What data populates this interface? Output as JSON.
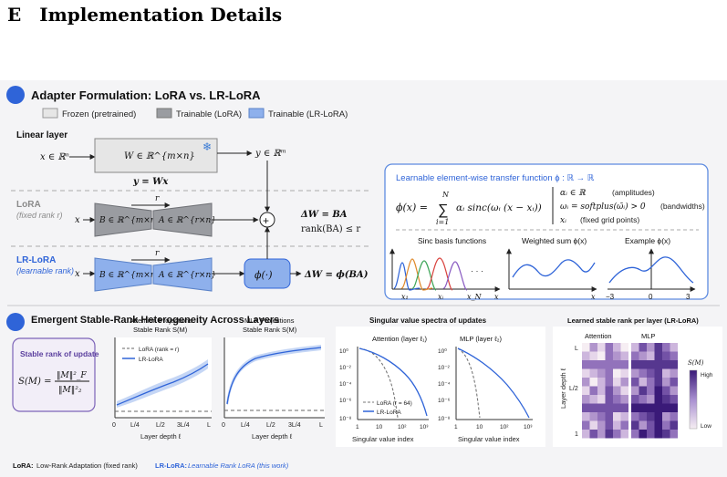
{
  "page": {
    "section_letter": "E",
    "section_title": "Implementation Details"
  },
  "colors": {
    "frozen": "#e6e6e6",
    "lora": "#9a9ca1",
    "lrlora": "#8eb0ec",
    "accent": "#2f64d8",
    "purple": "#5b3f9e",
    "heat_low": "#f6eef3",
    "heat_high": "#3a1a78"
  },
  "adapter": {
    "title": "Adapter Formulation: LoRA vs. LR-LoRA",
    "legend": {
      "frozen": "Frozen (pretrained)",
      "lora": "Trainable (LoRA)",
      "lrlora": "Trainable (LR-LoRA)"
    },
    "linear": {
      "label": "Linear layer",
      "input": "x ∈ ℝⁿ",
      "weight": "W ∈ ℝ^{m×n}",
      "output": "y ∈ ℝᵐ",
      "equation": "y = Wx",
      "icon": "snowflake-icon"
    },
    "lora": {
      "label": "LoRA",
      "sublabel": "(fixed rank r)",
      "input": "x",
      "rank": "r",
      "B": "B ∈ ℝ^{m×r}",
      "A": "A ∈ ℝ^{r×n}",
      "plus": "+",
      "update": "ΔW = BA",
      "rank_eq": "rank(BA) ≤ r"
    },
    "lrlora": {
      "label": "LR-LoRA",
      "sublabel": "(learnable rank)",
      "input": "x",
      "rank": "r",
      "B": "B ∈ ℝ^{m×r}",
      "A": "A ∈ ℝ^{r×n}",
      "phi": "ϕ(·)",
      "update": "ΔW = ϕ(BA)"
    }
  },
  "transfer": {
    "title": "Learnable element-wise transfer function  ϕ : ℝ → ℝ",
    "formula_lhs": "ϕ(x) =",
    "sum_top": "N",
    "sum_bottom": "i=1",
    "sum_term": "αᵢ sinc(ωᵢ (x − xᵢ))",
    "params": [
      {
        "symbol": "αᵢ ∈ ℝ",
        "desc": "(amplitudes)"
      },
      {
        "symbol": "ωᵢ = softplus(ω̃ᵢ) > 0",
        "desc": "(bandwidths)"
      },
      {
        "symbol": "xᵢ",
        "desc": "(fixed grid points)"
      }
    ],
    "plots": {
      "basis": {
        "title": "Sinc basis functions",
        "dots": "· · ·",
        "ticks": [
          "x₁",
          "xᵢ",
          "x_N",
          "x"
        ]
      },
      "sum": {
        "title": "Weighted sum ϕ(x)",
        "ticks": [
          "x"
        ]
      },
      "example": {
        "title": "Example ϕ(x)",
        "ticks": [
          "−3",
          "0",
          "3"
        ]
      }
    }
  },
  "emergent": {
    "title": "Emergent Stable-Rank Heterogeneity Across Layers",
    "stable_box": {
      "title": "Stable rank of update",
      "lhs": "S(M) =",
      "num": "‖M‖²_F",
      "den": "‖M‖²₂"
    },
    "attn_proj": {
      "title1": "Attention Projections",
      "title2": "Stable Rank S(M)",
      "legend": [
        "LoRA (rank = r)",
        "LR-LoRA"
      ],
      "xticks": [
        "0",
        "L/4",
        "L/2",
        "3L/4",
        "L"
      ],
      "xlabel": "Layer depth ℓ"
    },
    "mlp_proj": {
      "title1": "MLP Projections",
      "title2": "Stable Rank S(M)",
      "xticks": [
        "0",
        "L/4",
        "L/2",
        "3L/4",
        "L"
      ],
      "xlabel": "Layer depth ℓ"
    },
    "spectra": {
      "title": "Singular value spectra of updates",
      "attn_title": "Attention (layer ℓ₁)",
      "mlp_title": "MLP (layer ℓ₂)",
      "yticks": [
        "10⁰",
        "10⁻²",
        "10⁻⁴",
        "10⁻⁶",
        "10⁻⁸"
      ],
      "xticks": [
        "1",
        "10",
        "10²",
        "10³"
      ],
      "legend": [
        "LoRA (r = 64)",
        "LR-LoRA"
      ],
      "xlabel": "Singular value index"
    },
    "heatmap": {
      "title": "Learned stable rank per layer (LR-LoRA)",
      "cols": [
        "Attention",
        "MLP"
      ],
      "ylabel": "Layer depth ℓ",
      "yticks": [
        "L",
        "L/2",
        "1"
      ],
      "cbar_title": "S(M)",
      "cbar_high": "High",
      "cbar_low": "Low"
    }
  },
  "footer": {
    "lora_term": "LoRA:",
    "lora_desc": "Low-Rank Adaptation (fixed rank)",
    "lrlora_term": "LR-LoRA:",
    "lrlora_desc": "Learnable Rank LoRA (this work)"
  }
}
